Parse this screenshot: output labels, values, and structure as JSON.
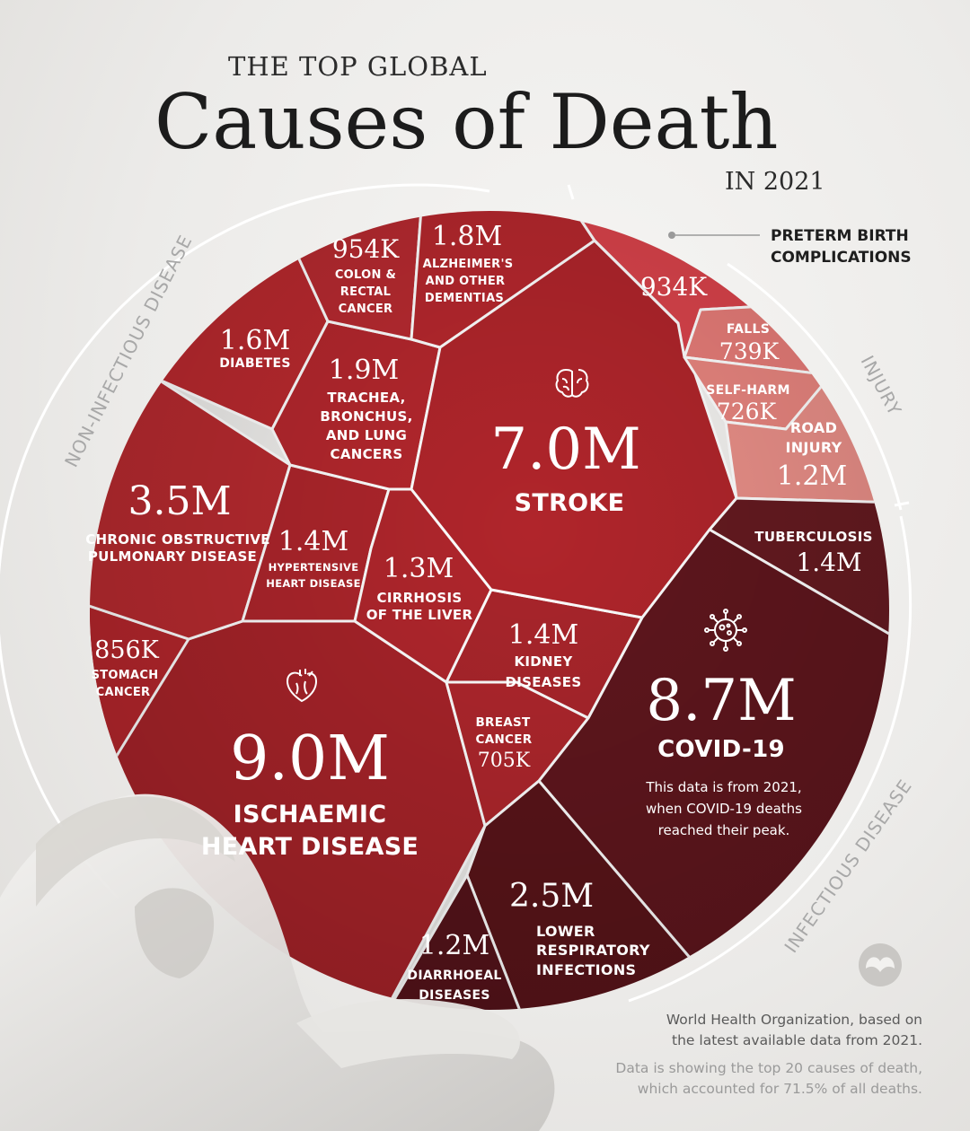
{
  "header": {
    "pre_title": "THE TOP GLOBAL",
    "title": "Causes of Death",
    "post_title": "IN 2021"
  },
  "groups": {
    "non_infectious": "NON-INFECTIOUS DISEASE",
    "injury": "INJURY",
    "infectious": "INFECTIOUS DISEASE"
  },
  "colors": {
    "non_infectious": "#b5262c",
    "infectious": "#5e151c",
    "injury": "#e8847e",
    "preterm": "#d9434b",
    "ring": "#ffffff"
  },
  "icons": [
    "brain-icon",
    "heart-icon",
    "virus-icon",
    "logo-icon"
  ],
  "chart_data": {
    "type": "voronoi treemap",
    "title": "Causes of Death",
    "subtitle": "THE TOP GLOBAL / IN 2021",
    "unit": "deaths",
    "groups": [
      "NON-INFECTIOUS DISEASE",
      "INJURY",
      "INFECTIOUS DISEASE"
    ],
    "cells": [
      {
        "id": "ihd",
        "label": "ISCHAEMIC HEART DISEASE",
        "value_label": "9.0M",
        "value": 9000000,
        "group": "NON-INFECTIOUS DISEASE"
      },
      {
        "id": "covid",
        "label": "COVID-19",
        "value_label": "8.7M",
        "value": 8700000,
        "group": "INFECTIOUS DISEASE",
        "note": "This data is from 2021, when COVID-19 deaths reached their peak."
      },
      {
        "id": "stroke",
        "label": "STROKE",
        "value_label": "7.0M",
        "value": 7000000,
        "group": "NON-INFECTIOUS DISEASE"
      },
      {
        "id": "copd",
        "label": "CHRONIC OBSTRUCTIVE PULMONARY DISEASE",
        "value_label": "3.5M",
        "value": 3500000,
        "group": "NON-INFECTIOUS DISEASE"
      },
      {
        "id": "lri",
        "label": "LOWER RESPIRATORY INFECTIONS",
        "value_label": "2.5M",
        "value": 2500000,
        "group": "INFECTIOUS DISEASE"
      },
      {
        "id": "trachea",
        "label": "TRACHEA, BRONCHUS, AND LUNG CANCERS",
        "value_label": "1.9M",
        "value": 1900000,
        "group": "NON-INFECTIOUS DISEASE"
      },
      {
        "id": "alz",
        "label": "ALZHEIMER'S AND OTHER DEMENTIAS",
        "value_label": "1.8M",
        "value": 1800000,
        "group": "NON-INFECTIOUS DISEASE"
      },
      {
        "id": "diabetes",
        "label": "DIABETES",
        "value_label": "1.6M",
        "value": 1600000,
        "group": "NON-INFECTIOUS DISEASE"
      },
      {
        "id": "kidney",
        "label": "KIDNEY DISEASES",
        "value_label": "1.4M",
        "value": 1400000,
        "group": "NON-INFECTIOUS DISEASE"
      },
      {
        "id": "hypertensive",
        "label": "HYPERTENSIVE HEART DISEASE",
        "value_label": "1.4M",
        "value": 1400000,
        "group": "NON-INFECTIOUS DISEASE"
      },
      {
        "id": "tb",
        "label": "TUBERCULOSIS",
        "value_label": "1.4M",
        "value": 1400000,
        "group": "INFECTIOUS DISEASE"
      },
      {
        "id": "cirrhosis",
        "label": "CIRRHOSIS OF THE LIVER",
        "value_label": "1.3M",
        "value": 1300000,
        "group": "NON-INFECTIOUS DISEASE"
      },
      {
        "id": "road",
        "label": "ROAD INJURY",
        "value_label": "1.2M",
        "value": 1200000,
        "group": "INJURY"
      },
      {
        "id": "diarrhoeal",
        "label": "DIARRHOEAL DISEASES",
        "value_label": "1.2M",
        "value": 1200000,
        "group": "INFECTIOUS DISEASE"
      },
      {
        "id": "colon",
        "label": "COLON & RECTAL CANCER",
        "value_label": "954K",
        "value": 954000,
        "group": "NON-INFECTIOUS DISEASE"
      },
      {
        "id": "preterm",
        "label": "PRETERM BIRTH COMPLICATIONS",
        "value_label": "934K",
        "value": 934000,
        "group": ""
      },
      {
        "id": "stomach",
        "label": "STOMACH CANCER",
        "value_label": "856K",
        "value": 856000,
        "group": "NON-INFECTIOUS DISEASE"
      },
      {
        "id": "falls",
        "label": "FALLS",
        "value_label": "739K",
        "value": 739000,
        "group": "INJURY"
      },
      {
        "id": "selfharm",
        "label": "SELF-HARM",
        "value_label": "726K",
        "value": 726000,
        "group": "INJURY"
      },
      {
        "id": "breast",
        "label": "BREAST CANCER",
        "value_label": "705K",
        "value": 705000,
        "group": "NON-INFECTIOUS DISEASE"
      }
    ]
  },
  "labels": {
    "ihd": {
      "value": "9.0M",
      "l1": "ISCHAEMIC",
      "l2": "HEART DISEASE"
    },
    "covid": {
      "value": "8.7M",
      "l1": "COVID-19",
      "n1": "This data is from 2021,",
      "n2": "when COVID-19 deaths",
      "n3": "reached their peak."
    },
    "stroke": {
      "value": "7.0M",
      "l1": "STROKE"
    },
    "copd": {
      "value": "3.5M",
      "l1": "CHRONIC OBSTRUCTIVE",
      "l2": "PULMONARY DISEASE"
    },
    "lri": {
      "value": "2.5M",
      "l1": "LOWER",
      "l2": "RESPIRATORY",
      "l3": "INFECTIONS"
    },
    "trachea": {
      "value": "1.9M",
      "l1": "TRACHEA,",
      "l2": "BRONCHUS,",
      "l3": "AND LUNG",
      "l4": "CANCERS"
    },
    "alz": {
      "value": "1.8M",
      "l1": "ALZHEIMER'S",
      "l2": "AND OTHER",
      "l3": "DEMENTIAS"
    },
    "diabetes": {
      "value": "1.6M",
      "l1": "DIABETES"
    },
    "kidney": {
      "value": "1.4M",
      "l1": "KIDNEY",
      "l2": "DISEASES"
    },
    "hypertensive": {
      "value": "1.4M",
      "l1": "HYPERTENSIVE",
      "l2": "HEART DISEASE"
    },
    "tb": {
      "value": "1.4M",
      "l1": "TUBERCULOSIS"
    },
    "cirrhosis": {
      "value": "1.3M",
      "l1": "CIRRHOSIS",
      "l2": "OF THE LIVER"
    },
    "road": {
      "value": "1.2M",
      "l1": "ROAD",
      "l2": "INJURY"
    },
    "diarrhoeal": {
      "value": "1.2M",
      "l1": "DIARRHOEAL",
      "l2": "DISEASES"
    },
    "colon": {
      "value": "954K",
      "l1": "COLON &",
      "l2": "RECTAL",
      "l3": "CANCER"
    },
    "preterm": {
      "value": "934K",
      "l1": "PRETERM BIRTH",
      "l2": "COMPLICATIONS"
    },
    "stomach": {
      "value": "856K",
      "l1": "STOMACH",
      "l2": "CANCER"
    },
    "falls": {
      "value": "739K",
      "l1": "FALLS"
    },
    "selfharm": {
      "value": "726K",
      "l1": "SELF-HARM"
    },
    "breast": {
      "value": "705K",
      "l1": "BREAST",
      "l2": "CANCER"
    }
  },
  "footer": {
    "source_line1": "World Health Organization, based on",
    "source_line2": "the latest available data from 2021.",
    "note_line1": "Data is showing the top 20 causes of death,",
    "note_line2": "which accounted for 71.5% of all deaths."
  }
}
